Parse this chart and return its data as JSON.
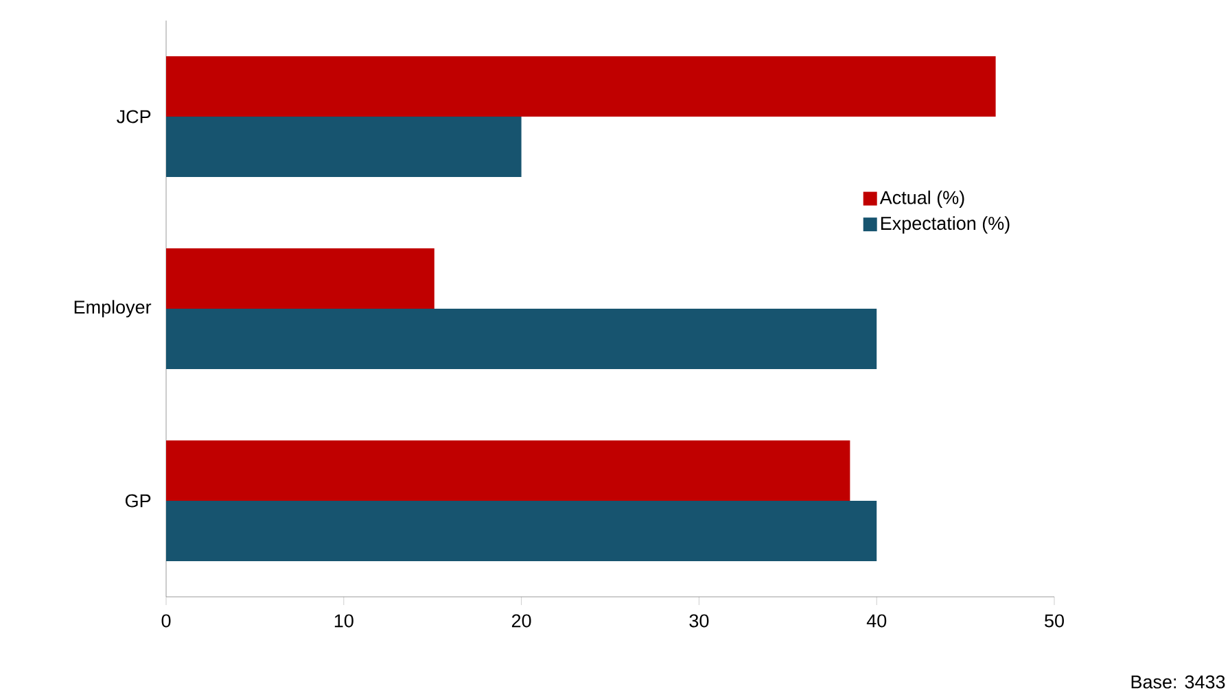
{
  "chart_data": {
    "type": "bar",
    "orientation": "horizontal",
    "categories": [
      "JCP",
      "Employer",
      "GP"
    ],
    "series": [
      {
        "name": "Actual (%)",
        "color": "#c00000",
        "values": [
          46.7,
          15.1,
          38.5
        ]
      },
      {
        "name": "Expectation (%)",
        "color": "#17546f",
        "values": [
          20,
          40,
          40
        ]
      }
    ],
    "xlim": [
      0,
      50
    ],
    "xticks": [
      0,
      10,
      20,
      30,
      40,
      50
    ],
    "grid": false,
    "legend": "right",
    "annotations": [
      "Base: 3433"
    ]
  }
}
